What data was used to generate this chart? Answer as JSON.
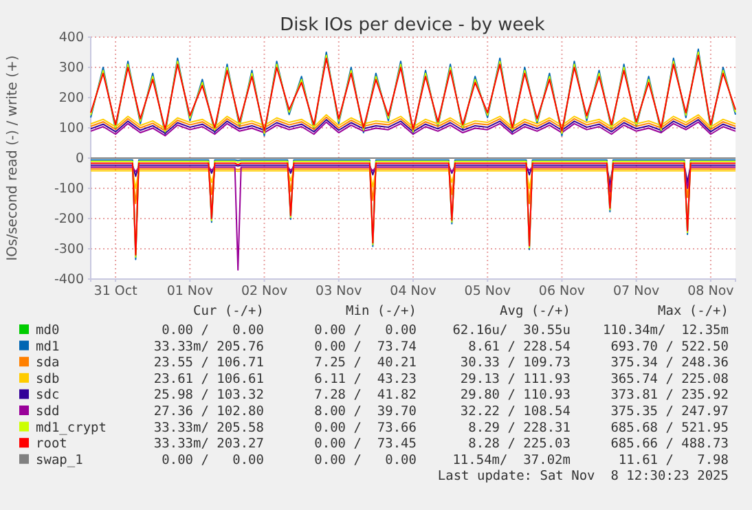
{
  "chart_data": {
    "type": "line",
    "title": "Disk IOs per device - by week",
    "ylabel": "IOs/second read (-) / write (+)",
    "x": [
      "2025-10-30T16:00",
      "2025-10-30T20:00",
      "2025-10-31T00:00",
      "2025-10-31T04:00",
      "2025-10-31T08:00",
      "2025-10-31T12:00",
      "2025-10-31T16:00",
      "2025-10-31T20:00",
      "2025-11-01T00:00",
      "2025-11-01T04:00",
      "2025-11-01T08:00",
      "2025-11-01T12:00",
      "2025-11-01T16:00",
      "2025-11-01T20:00",
      "2025-11-02T00:00",
      "2025-11-02T04:00",
      "2025-11-02T08:00",
      "2025-11-02T12:00",
      "2025-11-02T16:00",
      "2025-11-02T20:00",
      "2025-11-03T00:00",
      "2025-11-03T04:00",
      "2025-11-03T08:00",
      "2025-11-03T12:00",
      "2025-11-03T16:00",
      "2025-11-03T20:00",
      "2025-11-04T00:00",
      "2025-11-04T04:00",
      "2025-11-04T08:00",
      "2025-11-04T12:00",
      "2025-11-04T16:00",
      "2025-11-04T20:00",
      "2025-11-05T00:00",
      "2025-11-05T04:00",
      "2025-11-05T08:00",
      "2025-11-05T12:00",
      "2025-11-05T16:00",
      "2025-11-05T20:00",
      "2025-11-06T00:00",
      "2025-11-06T04:00",
      "2025-11-06T08:00",
      "2025-11-06T12:00",
      "2025-11-06T16:00",
      "2025-11-06T20:00",
      "2025-11-07T00:00",
      "2025-11-07T04:00",
      "2025-11-07T08:00",
      "2025-11-07T12:00",
      "2025-11-07T16:00",
      "2025-11-07T20:00",
      "2025-11-08T00:00",
      "2025-11-08T04:00",
      "2025-11-08T08:00"
    ],
    "series": [
      {
        "color": "#0066b3",
        "x": [
          "2025-10-30T16:00",
          "2025-10-31T05:30",
          "2025-10-31T06:30",
          "2025-10-31T07:30",
          "2025-11-01T06:00",
          "2025-11-01T07:00",
          "2025-11-01T08:00",
          "2025-11-01T14:30",
          "2025-11-01T15:30",
          "2025-11-01T16:30",
          "2025-11-02T07:30",
          "2025-11-02T08:30",
          "2025-11-02T09:30",
          "2025-11-03T10:00",
          "2025-11-03T11:00",
          "2025-11-03T12:00",
          "2025-11-04T11:30",
          "2025-11-04T12:30",
          "2025-11-04T13:30",
          "2025-11-05T12:30",
          "2025-11-05T13:30",
          "2025-11-05T14:30",
          "2025-11-06T14:30",
          "2025-11-06T15:30",
          "2025-11-06T16:30",
          "2025-11-07T15:30",
          "2025-11-07T16:30",
          "2025-11-07T17:30",
          "2025-11-08T08:00"
        ],
        "values": [
          -6,
          -6,
          -335,
          -6,
          -6,
          -212,
          -6,
          -6,
          -8,
          -6,
          -6,
          -202,
          -6,
          -6,
          -292,
          -6,
          -6,
          -217,
          -6,
          -6,
          -302,
          -6,
          -6,
          -177,
          -6,
          -6,
          -252,
          -6,
          -6
        ]
      },
      {
        "color": "#ff8000",
        "x": [
          "2025-10-30T16:00",
          "2025-10-31T05:30",
          "2025-10-31T06:30",
          "2025-10-31T07:30",
          "2025-11-01T06:00",
          "2025-11-01T07:00",
          "2025-11-01T08:00",
          "2025-11-01T14:30",
          "2025-11-01T15:30",
          "2025-11-01T16:30",
          "2025-11-02T07:30",
          "2025-11-02T08:30",
          "2025-11-02T09:30",
          "2025-11-03T10:00",
          "2025-11-03T11:00",
          "2025-11-03T12:00",
          "2025-11-04T11:30",
          "2025-11-04T12:30",
          "2025-11-04T13:30",
          "2025-11-05T12:30",
          "2025-11-05T13:30",
          "2025-11-05T14:30",
          "2025-11-06T14:30",
          "2025-11-06T15:30",
          "2025-11-06T16:30",
          "2025-11-07T15:30",
          "2025-11-07T16:30",
          "2025-11-07T17:30",
          "2025-11-08T08:00"
        ],
        "values": [
          -36,
          -36,
          -150,
          -36,
          -36,
          -120,
          -36,
          -36,
          -38,
          -36,
          -36,
          -110,
          -36,
          -36,
          -140,
          -36,
          -36,
          -120,
          -36,
          -36,
          -150,
          -36,
          -36,
          -130,
          -36,
          -36,
          -130,
          -36,
          -36
        ]
      },
      {
        "color": "#ffcc00",
        "x": [
          "2025-10-30T16:00",
          "2025-10-31T05:30",
          "2025-10-31T06:30",
          "2025-10-31T07:30",
          "2025-11-01T06:00",
          "2025-11-01T07:00",
          "2025-11-01T08:00",
          "2025-11-01T14:30",
          "2025-11-01T15:30",
          "2025-11-01T16:30",
          "2025-11-02T07:30",
          "2025-11-02T08:30",
          "2025-11-02T09:30",
          "2025-11-03T10:00",
          "2025-11-03T11:00",
          "2025-11-03T12:00",
          "2025-11-04T11:30",
          "2025-11-04T12:30",
          "2025-11-04T13:30",
          "2025-11-05T12:30",
          "2025-11-05T13:30",
          "2025-11-05T14:30",
          "2025-11-06T14:30",
          "2025-11-06T15:30",
          "2025-11-06T16:30",
          "2025-11-07T15:30",
          "2025-11-07T16:30",
          "2025-11-07T17:30",
          "2025-11-08T08:00"
        ],
        "values": [
          -42,
          -42,
          -100,
          -42,
          -42,
          -80,
          -42,
          -42,
          -44,
          -42,
          -42,
          -75,
          -42,
          -42,
          -95,
          -42,
          -42,
          -80,
          -42,
          -42,
          -100,
          -42,
          -42,
          -70,
          -42,
          -42,
          -90,
          -42,
          -42
        ]
      },
      {
        "color": "#330099",
        "x": [
          "2025-10-30T16:00",
          "2025-10-31T05:30",
          "2025-10-31T06:30",
          "2025-10-31T07:30",
          "2025-11-01T06:00",
          "2025-11-01T07:00",
          "2025-11-01T08:00",
          "2025-11-01T14:30",
          "2025-11-01T15:30",
          "2025-11-01T16:30",
          "2025-11-02T07:30",
          "2025-11-02T08:30",
          "2025-11-02T09:30",
          "2025-11-03T10:00",
          "2025-11-03T11:00",
          "2025-11-03T12:00",
          "2025-11-04T11:30",
          "2025-11-04T12:30",
          "2025-11-04T13:30",
          "2025-11-05T12:30",
          "2025-11-05T13:30",
          "2025-11-05T14:30",
          "2025-11-06T14:30",
          "2025-11-06T15:30",
          "2025-11-06T16:30",
          "2025-11-07T15:30",
          "2025-11-07T16:30",
          "2025-11-07T17:30",
          "2025-11-08T08:00"
        ],
        "values": [
          -24,
          -24,
          -60,
          -24,
          -24,
          -50,
          -24,
          -24,
          -26,
          -24,
          -24,
          -50,
          -24,
          -24,
          -55,
          -24,
          -24,
          -50,
          -24,
          -24,
          -55,
          -24,
          -24,
          -90,
          -24,
          -24,
          -80,
          -24,
          -24
        ]
      },
      {
        "color": "#990099",
        "x": [
          "2025-10-30T16:00",
          "2025-10-31T05:30",
          "2025-10-31T06:30",
          "2025-10-31T07:30",
          "2025-11-01T06:00",
          "2025-11-01T07:00",
          "2025-11-01T08:00",
          "2025-11-01T14:30",
          "2025-11-01T15:30",
          "2025-11-01T16:30",
          "2025-11-02T07:30",
          "2025-11-02T08:30",
          "2025-11-02T09:30",
          "2025-11-03T10:00",
          "2025-11-03T11:00",
          "2025-11-03T12:00",
          "2025-11-04T11:30",
          "2025-11-04T12:30",
          "2025-11-04T13:30",
          "2025-11-05T12:30",
          "2025-11-05T13:30",
          "2025-11-05T14:30",
          "2025-11-06T14:30",
          "2025-11-06T15:30",
          "2025-11-06T16:30",
          "2025-11-07T15:30",
          "2025-11-07T16:30",
          "2025-11-07T17:30",
          "2025-11-08T08:00"
        ],
        "values": [
          -30,
          -30,
          -45,
          -30,
          -30,
          -40,
          -30,
          -30,
          -370,
          -30,
          -30,
          -40,
          -30,
          -30,
          -42,
          -30,
          -30,
          -45,
          -30,
          -30,
          -40,
          -30,
          -30,
          -110,
          -30,
          -30,
          -100,
          -30,
          -30
        ]
      },
      {
        "color": "#ccff00",
        "x": [
          "2025-10-30T16:00",
          "2025-10-31T05:30",
          "2025-10-31T06:30",
          "2025-10-31T07:30",
          "2025-11-01T06:00",
          "2025-11-01T07:00",
          "2025-11-01T08:00",
          "2025-11-01T14:30",
          "2025-11-01T15:30",
          "2025-11-01T16:30",
          "2025-11-02T07:30",
          "2025-11-02T08:30",
          "2025-11-02T09:30",
          "2025-11-03T10:00",
          "2025-11-03T11:00",
          "2025-11-03T12:00",
          "2025-11-04T11:30",
          "2025-11-04T12:30",
          "2025-11-04T13:30",
          "2025-11-05T12:30",
          "2025-11-05T13:30",
          "2025-11-05T14:30",
          "2025-11-06T14:30",
          "2025-11-06T15:30",
          "2025-11-06T16:30",
          "2025-11-07T15:30",
          "2025-11-07T16:30",
          "2025-11-07T17:30",
          "2025-11-08T08:00"
        ],
        "values": [
          -11,
          -11,
          -327,
          -11,
          -11,
          -206,
          -11,
          -11,
          -14,
          -11,
          -11,
          -196,
          -11,
          -11,
          -286,
          -11,
          -11,
          -211,
          -11,
          -11,
          -296,
          -11,
          -11,
          -171,
          -11,
          -11,
          -246,
          -11,
          -11
        ]
      },
      {
        "color": "#ff0000",
        "x": [
          "2025-10-30T16:00",
          "2025-10-31T05:30",
          "2025-10-31T06:30",
          "2025-10-31T07:30",
          "2025-11-01T06:00",
          "2025-11-01T07:00",
          "2025-11-01T08:00",
          "2025-11-01T14:30",
          "2025-11-01T15:30",
          "2025-11-01T16:30",
          "2025-11-02T07:30",
          "2025-11-02T08:30",
          "2025-11-02T09:30",
          "2025-11-03T10:00",
          "2025-11-03T11:00",
          "2025-11-03T12:00",
          "2025-11-04T11:30",
          "2025-11-04T12:30",
          "2025-11-04T13:30",
          "2025-11-05T12:30",
          "2025-11-05T13:30",
          "2025-11-05T14:30",
          "2025-11-06T14:30",
          "2025-11-06T15:30",
          "2025-11-06T16:30",
          "2025-11-07T15:30",
          "2025-11-07T16:30",
          "2025-11-07T17:30",
          "2025-11-08T08:00"
        ],
        "values": [
          -17,
          -17,
          -320,
          -17,
          -17,
          -200,
          -17,
          -17,
          -22,
          -17,
          -17,
          -190,
          -17,
          -17,
          -280,
          -17,
          -17,
          -205,
          -17,
          -17,
          -290,
          -17,
          -17,
          -165,
          -17,
          -17,
          -240,
          -17,
          -17
        ]
      },
      {
        "name": "md0",
        "color": "#00cc00",
        "values": [
          null,
          null,
          null,
          null,
          null,
          null,
          null,
          null,
          null,
          null,
          null,
          null,
          null,
          null,
          null,
          null,
          null,
          null,
          null,
          null,
          null,
          null,
          null,
          null,
          null,
          null,
          null,
          null,
          null,
          null,
          null,
          null,
          null,
          null,
          null,
          null,
          null,
          null,
          null,
          null,
          null,
          null,
          null,
          null,
          null,
          null,
          null,
          null,
          null,
          null,
          null,
          null,
          null
        ]
      },
      {
        "name": "md1",
        "color": "#0066b3",
        "values": [
          134,
          300,
          94,
          320,
          114,
          280,
          79,
          330,
          124,
          260,
          84,
          310,
          104,
          290,
          74,
          320,
          144,
          270,
          94,
          350,
          114,
          300,
          84,
          280,
          124,
          320,
          79,
          290,
          104,
          310,
          94,
          270,
          134,
          330,
          84,
          300,
          114,
          280,
          74,
          320,
          124,
          290,
          94,
          310,
          104,
          270,
          84,
          330,
          134,
          360,
          94,
          300,
          144
        ]
      },
      {
        "name": "sda",
        "color": "#ff8000",
        "values": [
          105,
          120,
          95,
          130,
          100,
          115,
          90,
          125,
          110,
          120,
          95,
          130,
          105,
          115,
          100,
          125,
          110,
          120,
          95,
          135,
          100,
          125,
          105,
          115,
          110,
          130,
          95,
          120,
          105,
          125,
          100,
          115,
          110,
          130,
          95,
          120,
          105,
          125,
          100,
          130,
          110,
          120,
          95,
          125,
          105,
          115,
          100,
          130,
          110,
          135,
          95,
          120,
          105
        ]
      },
      {
        "name": "sdb",
        "color": "#ffcc00",
        "values": [
          113,
          128,
          103,
          138,
          108,
          123,
          98,
          133,
          118,
          128,
          103,
          138,
          113,
          123,
          108,
          133,
          118,
          128,
          103,
          143,
          108,
          133,
          113,
          123,
          118,
          138,
          103,
          128,
          113,
          133,
          108,
          123,
          118,
          138,
          103,
          128,
          113,
          133,
          108,
          138,
          118,
          128,
          103,
          133,
          113,
          123,
          108,
          138,
          118,
          143,
          103,
          128,
          113
        ]
      },
      {
        "name": "sdc",
        "color": "#330099",
        "values": [
          97,
          112,
          87,
          122,
          92,
          107,
          82,
          117,
          102,
          112,
          87,
          122,
          97,
          107,
          92,
          117,
          102,
          112,
          87,
          127,
          92,
          117,
          97,
          107,
          102,
          122,
          87,
          112,
          97,
          117,
          92,
          107,
          102,
          122,
          87,
          112,
          97,
          117,
          92,
          122,
          102,
          112,
          87,
          117,
          97,
          107,
          92,
          122,
          102,
          127,
          87,
          112,
          97
        ]
      },
      {
        "name": "sdd",
        "color": "#990099",
        "values": [
          89,
          104,
          79,
          114,
          84,
          99,
          74,
          109,
          94,
          104,
          79,
          114,
          89,
          99,
          84,
          109,
          94,
          104,
          79,
          119,
          84,
          109,
          89,
          99,
          94,
          114,
          79,
          104,
          89,
          109,
          84,
          99,
          94,
          114,
          79,
          104,
          89,
          109,
          84,
          114,
          94,
          104,
          79,
          109,
          89,
          99,
          84,
          114,
          94,
          119,
          79,
          104,
          89
        ]
      },
      {
        "name": "md1_crypt",
        "color": "#ccff00",
        "values": [
          142,
          290,
          102,
          310,
          122,
          270,
          87,
          320,
          132,
          250,
          92,
          300,
          112,
          280,
          82,
          310,
          152,
          260,
          102,
          340,
          122,
          290,
          92,
          270,
          132,
          310,
          87,
          280,
          112,
          300,
          102,
          260,
          142,
          320,
          92,
          290,
          122,
          270,
          82,
          310,
          132,
          280,
          102,
          300,
          112,
          260,
          92,
          320,
          142,
          350,
          102,
          290,
          152
        ]
      },
      {
        "name": "root",
        "color": "#ff0000",
        "values": [
          150,
          280,
          110,
          300,
          130,
          260,
          95,
          310,
          140,
          240,
          100,
          290,
          120,
          270,
          90,
          300,
          160,
          250,
          110,
          330,
          130,
          280,
          100,
          260,
          140,
          300,
          95,
          270,
          120,
          290,
          110,
          250,
          150,
          310,
          100,
          280,
          130,
          260,
          90,
          300,
          140,
          270,
          110,
          290,
          120,
          250,
          100,
          310,
          150,
          340,
          110,
          280,
          160
        ]
      },
      {
        "name": "swap_1",
        "color": "#808080",
        "x": [
          "2025-10-30T16:00",
          "2025-11-08T08:00"
        ],
        "values": [
          0,
          0
        ]
      }
    ],
    "xlim": [
      "2025-10-30T16:00",
      "2025-11-08T08:00"
    ],
    "xticks": [
      {
        "value": "2025-10-31",
        "label": "31 Oct"
      },
      {
        "value": "2025-11-01",
        "label": "01 Nov"
      },
      {
        "value": "2025-11-02",
        "label": "02 Nov"
      },
      {
        "value": "2025-11-03",
        "label": "03 Nov"
      },
      {
        "value": "2025-11-04",
        "label": "04 Nov"
      },
      {
        "value": "2025-11-05",
        "label": "05 Nov"
      },
      {
        "value": "2025-11-06",
        "label": "06 Nov"
      },
      {
        "value": "2025-11-07",
        "label": "07 Nov"
      },
      {
        "value": "2025-11-08",
        "label": "08 Nov"
      }
    ],
    "ylim": [
      -400,
      400
    ],
    "yticks": [
      -400,
      -300,
      -200,
      -100,
      0,
      100,
      200,
      300,
      400
    ],
    "grid": true,
    "legend": "bottom",
    "line_style": "solid",
    "annotations": [
      "Cur (-/+)",
      "Min (-/+)",
      "Avg (-/+)",
      "Max (-/+)",
      "0.00 /   0.00",
      "0.00 /   0.00",
      "62.16u/  30.55u",
      "110.34m/  12.35m",
      "33.33m/ 205.76",
      "0.00 /  73.74",
      "8.61 / 228.54",
      "693.70 / 522.50",
      "23.55 / 106.71",
      "7.25 /  40.21",
      "30.33 / 109.73",
      "375.34 / 248.36",
      "23.61 / 106.61",
      "6.11 /  43.23",
      "29.13 / 111.93",
      "365.74 / 225.08",
      "25.98 / 103.32",
      "7.28 /  41.82",
      "29.80 / 110.93",
      "373.81 / 235.92",
      "27.36 / 102.80",
      "8.00 /  39.70",
      "32.22 / 108.54",
      "375.35 / 247.97",
      "33.33m/ 205.58",
      "0.00 /  73.66",
      "8.29 / 228.31",
      "685.68 / 521.95",
      "33.33m/ 203.27",
      "0.00 /  73.45",
      "8.28 / 225.03",
      "685.66 / 488.73",
      "0.00 /   0.00",
      "0.00 /   0.00",
      "11.54m/  37.02m",
      "11.61 /   7.98",
      "Last update: Sat Nov  8 12:30:23 2025"
    ]
  }
}
